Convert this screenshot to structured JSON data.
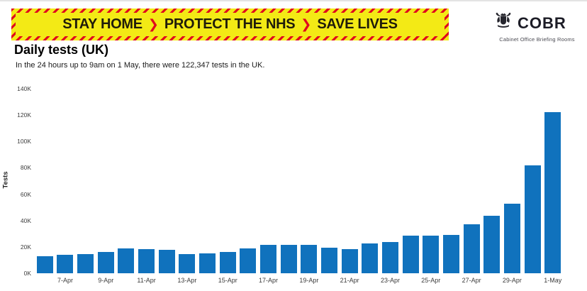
{
  "banner": {
    "segments": [
      "STAY HOME",
      "PROTECT THE NHS",
      "SAVE LIVES"
    ],
    "separator": "❯",
    "bg_color": "#f3ea15",
    "stripe_color": "#e00a1e",
    "text_color": "#201c0a"
  },
  "logo": {
    "name": "COBR",
    "subtitle": "Cabinet Office Briefing Rooms",
    "crest_icon": "royal-coat-of-arms-icon"
  },
  "header": {
    "title": "Daily tests (UK)",
    "subtitle": "In the 24 hours up to 9am on 1 May, there were 122,347 tests in the UK."
  },
  "chart_data": {
    "type": "bar",
    "title": "Daily tests (UK)",
    "xlabel": "",
    "ylabel": "Tests",
    "ylim": [
      0,
      140000
    ],
    "ytick_labels": [
      "0K",
      "20K",
      "40K",
      "60K",
      "80K",
      "100K",
      "120K",
      "140K"
    ],
    "grid": false,
    "legend": false,
    "bar_color": "#1072bd",
    "categories": [
      "6-Apr",
      "7-Apr",
      "8-Apr",
      "9-Apr",
      "10-Apr",
      "11-Apr",
      "12-Apr",
      "13-Apr",
      "14-Apr",
      "15-Apr",
      "16-Apr",
      "17-Apr",
      "18-Apr",
      "19-Apr",
      "20-Apr",
      "21-Apr",
      "22-Apr",
      "23-Apr",
      "24-Apr",
      "25-Apr",
      "26-Apr",
      "27-Apr",
      "28-Apr",
      "29-Apr",
      "30-Apr",
      "1-May"
    ],
    "values": [
      12700,
      13800,
      14300,
      16400,
      18700,
      18200,
      17900,
      14600,
      15200,
      16300,
      18700,
      21400,
      21400,
      21600,
      19400,
      18100,
      22800,
      23500,
      28500,
      28800,
      29100,
      37000,
      43500,
      52800,
      81600,
      122347
    ],
    "xtick_shown_every": 2,
    "xtick_shown_offset": 1
  }
}
